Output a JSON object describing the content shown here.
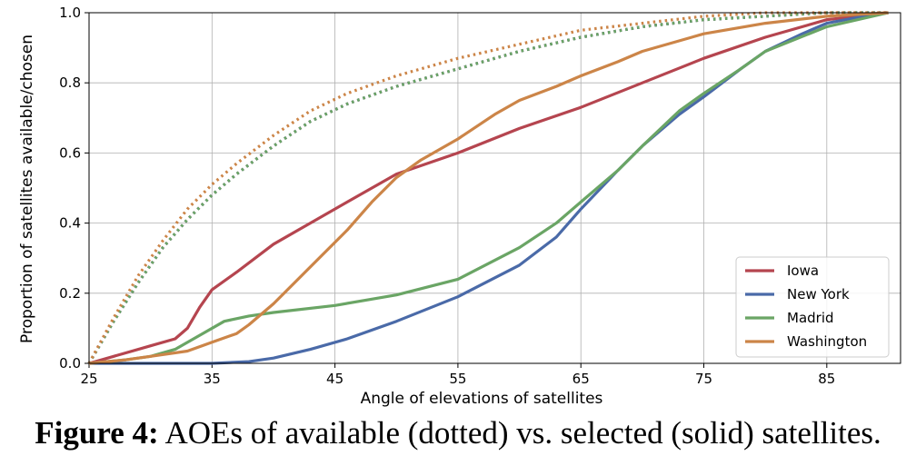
{
  "chart_data": {
    "type": "line",
    "xlabel": "Angle of elevations of satellites",
    "ylabel": "Proportion of satellites available/chosen",
    "xlim": [
      25,
      91
    ],
    "ylim": [
      0,
      1.0
    ],
    "xticks": [
      25,
      35,
      45,
      55,
      65,
      75,
      85
    ],
    "yticks": [
      0.0,
      0.2,
      0.4,
      0.6,
      0.8,
      1.0
    ],
    "ytick_labels": [
      "0.0",
      "0.2",
      "0.4",
      "0.6",
      "0.8",
      "1.0"
    ],
    "grid": true,
    "legend_position": "lower-right",
    "available_x": [
      25,
      27,
      29,
      31,
      33,
      35,
      37,
      40,
      43,
      46,
      50,
      55,
      60,
      65,
      70,
      75,
      80,
      85,
      90
    ],
    "series": [
      {
        "name": "Iowa",
        "color": "#b5454f",
        "selected": {
          "x": [
            25,
            27,
            30,
            32,
            33,
            34,
            35,
            37,
            40,
            43,
            46,
            48,
            50,
            55,
            60,
            65,
            70,
            75,
            80,
            85,
            90
          ],
          "y": [
            0.0,
            0.02,
            0.05,
            0.07,
            0.1,
            0.16,
            0.21,
            0.26,
            0.34,
            0.4,
            0.46,
            0.5,
            0.54,
            0.6,
            0.67,
            0.73,
            0.8,
            0.87,
            0.93,
            0.98,
            1.0
          ]
        },
        "available": [
          0.0,
          0.12,
          0.23,
          0.33,
          0.41,
          0.48,
          0.54,
          0.62,
          0.69,
          0.74,
          0.79,
          0.84,
          0.89,
          0.93,
          0.96,
          0.98,
          0.99,
          1.0,
          1.0
        ]
      },
      {
        "name": "New York",
        "color": "#4a6aa8",
        "selected": {
          "x": [
            25,
            30,
            35,
            38,
            40,
            43,
            46,
            50,
            55,
            60,
            63,
            65,
            68,
            70,
            73,
            75,
            78,
            80,
            83,
            85,
            88,
            90
          ],
          "y": [
            0.0,
            0.0,
            0.0,
            0.005,
            0.015,
            0.04,
            0.07,
            0.12,
            0.19,
            0.28,
            0.36,
            0.44,
            0.55,
            0.62,
            0.71,
            0.76,
            0.84,
            0.89,
            0.94,
            0.97,
            0.99,
            1.0
          ]
        },
        "available": [
          0.0,
          0.12,
          0.23,
          0.33,
          0.41,
          0.48,
          0.54,
          0.62,
          0.69,
          0.74,
          0.79,
          0.84,
          0.89,
          0.93,
          0.96,
          0.98,
          0.99,
          1.0,
          1.0
        ]
      },
      {
        "name": "Madrid",
        "color": "#6aa565",
        "selected": {
          "x": [
            25,
            28,
            30,
            32,
            34,
            36,
            38,
            40,
            45,
            50,
            55,
            60,
            63,
            65,
            68,
            70,
            73,
            75,
            78,
            80,
            85,
            90
          ],
          "y": [
            0.0,
            0.01,
            0.02,
            0.04,
            0.08,
            0.12,
            0.135,
            0.145,
            0.165,
            0.195,
            0.24,
            0.33,
            0.4,
            0.46,
            0.55,
            0.62,
            0.72,
            0.77,
            0.84,
            0.89,
            0.96,
            1.0
          ]
        },
        "available": [
          0.0,
          0.12,
          0.23,
          0.33,
          0.41,
          0.48,
          0.54,
          0.62,
          0.69,
          0.74,
          0.79,
          0.84,
          0.89,
          0.93,
          0.96,
          0.98,
          0.99,
          1.0,
          1.0
        ]
      },
      {
        "name": "Washington",
        "color": "#cc8548",
        "selected": {
          "x": [
            25,
            28,
            30,
            33,
            35,
            37,
            38,
            40,
            42,
            44,
            46,
            48,
            50,
            52,
            55,
            58,
            60,
            63,
            65,
            68,
            70,
            75,
            80,
            85,
            90
          ],
          "y": [
            0.0,
            0.01,
            0.02,
            0.035,
            0.06,
            0.085,
            0.11,
            0.17,
            0.24,
            0.31,
            0.38,
            0.46,
            0.53,
            0.58,
            0.64,
            0.71,
            0.75,
            0.79,
            0.82,
            0.86,
            0.89,
            0.94,
            0.97,
            0.99,
            1.0
          ]
        },
        "available": [
          0.0,
          0.13,
          0.25,
          0.35,
          0.44,
          0.51,
          0.57,
          0.65,
          0.72,
          0.77,
          0.82,
          0.87,
          0.91,
          0.95,
          0.97,
          0.99,
          1.0,
          1.0,
          1.0
        ]
      }
    ]
  },
  "caption": {
    "label": "Figure 4:",
    "text": " AOEs of available (dotted) vs. selected (solid) satellites."
  }
}
